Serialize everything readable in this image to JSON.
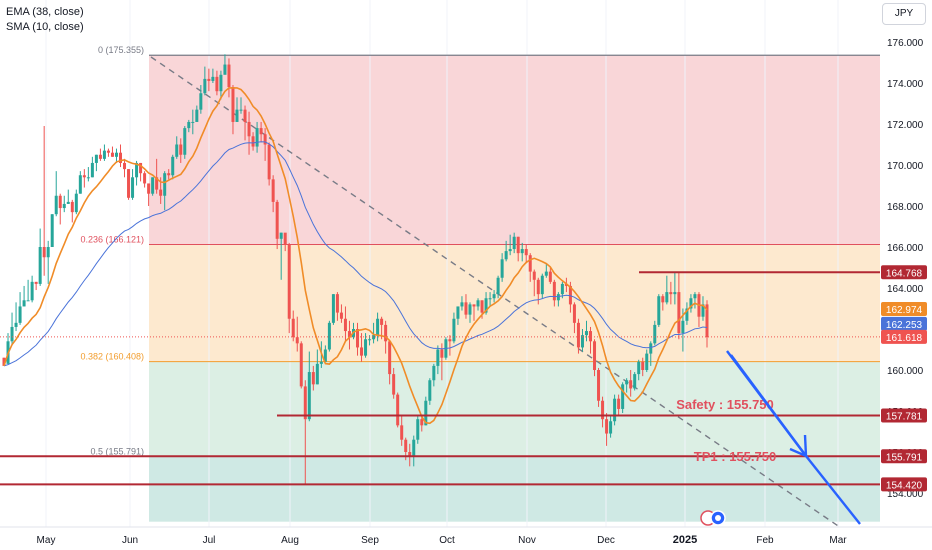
{
  "legend": {
    "ema": "EMA (38, close)",
    "sma": "SMA (10, close)"
  },
  "currency": "JPY",
  "colors": {
    "up": "#26a69a",
    "down": "#ef5350",
    "ema": "#4a73d9",
    "sma": "#f08c28",
    "level": "#b22833",
    "projection": "#2962ff",
    "zone_red": "#f9d6d8",
    "zone_orange": "#fde9cf",
    "zone_green": "#dcefe4",
    "zone_teal": "#cfe9e4"
  },
  "chart_data": {
    "type": "candlestick",
    "title": "",
    "ylim": [
      152.6,
      176.5
    ],
    "y_ticks": [
      "176.000",
      "174.000",
      "172.000",
      "170.000",
      "168.000",
      "166.000",
      "164.000",
      "162.000",
      "160.000",
      "158.000",
      "156.000",
      "154.000"
    ],
    "x_ticks": [
      "May",
      "Jun",
      "Jul",
      "Aug",
      "Sep",
      "Oct",
      "Nov",
      "Dec",
      "2025",
      "Feb",
      "Mar"
    ],
    "fib_levels": [
      {
        "label": "0 (175.355)",
        "value": 175.355
      },
      {
        "label": "0.236 (166.121)",
        "value": 166.121
      },
      {
        "label": "0.382 (160.408)",
        "value": 160.408
      },
      {
        "label": "0.5 (155.791)",
        "value": 155.791
      }
    ],
    "price_tags": [
      {
        "value": 164.768,
        "label": "164.768",
        "kind": "level"
      },
      {
        "value": 162.974,
        "label": "162.974",
        "kind": "sma"
      },
      {
        "value": 162.253,
        "label": "162.253",
        "kind": "ema"
      },
      {
        "value": 161.618,
        "label": "161.618",
        "kind": "last"
      },
      {
        "value": 157.781,
        "label": "157.781",
        "kind": "level"
      },
      {
        "value": 155.791,
        "label": "155.791",
        "kind": "level"
      },
      {
        "value": 154.42,
        "label": "154.420",
        "kind": "level"
      }
    ],
    "annotations": [
      {
        "text": "Safety : 155.750",
        "value": 158.3
      },
      {
        "text": "TP1 : 155.750",
        "value": 155.75
      }
    ],
    "ohlc": [
      [
        160.6,
        160.2,
        160.6,
        160.3
      ],
      [
        160.3,
        161.4,
        161.8,
        160.3
      ],
      [
        161.4,
        162.1,
        162.8,
        161.2
      ],
      [
        162.1,
        162.3,
        163.3,
        161.9
      ],
      [
        162.3,
        163.1,
        163.8,
        162.2
      ],
      [
        163.1,
        163.4,
        164.1,
        163.1
      ],
      [
        163.4,
        163.4,
        164.4,
        163.4
      ],
      [
        163.4,
        164.3,
        164.6,
        163.3
      ],
      [
        164.3,
        164.2,
        164.3,
        163.9
      ],
      [
        164.2,
        166.0,
        166.9,
        164.1
      ],
      [
        166.0,
        165.5,
        171.9,
        164.6
      ],
      [
        165.5,
        166.0,
        166.3,
        164.2
      ],
      [
        166.0,
        167.6,
        167.6,
        166.0
      ],
      [
        167.6,
        168.5,
        169.7,
        167.5
      ],
      [
        168.5,
        167.9,
        168.6,
        167.1
      ],
      [
        167.9,
        168.1,
        168.5,
        167.7
      ],
      [
        168.1,
        168.2,
        168.8,
        168.1
      ],
      [
        168.2,
        167.7,
        168.3,
        167.2
      ],
      [
        167.7,
        168.6,
        168.8,
        167.6
      ],
      [
        168.6,
        169.5,
        169.7,
        168.6
      ],
      [
        169.5,
        169.4,
        169.8,
        168.9
      ],
      [
        169.4,
        169.4,
        169.9,
        169.2
      ],
      [
        169.4,
        170.1,
        170.4,
        169.4
      ],
      [
        170.1,
        170.5,
        170.5,
        169.7
      ],
      [
        170.5,
        170.3,
        170.8,
        170.2
      ],
      [
        170.3,
        170.7,
        171.0,
        170.2
      ],
      [
        170.7,
        170.6,
        170.8,
        170.4
      ],
      [
        170.6,
        170.4,
        170.9,
        170.4
      ],
      [
        170.4,
        170.6,
        170.8,
        170.1
      ],
      [
        170.6,
        170.1,
        171.0,
        169.9
      ],
      [
        170.1,
        169.8,
        170.3,
        169.4
      ],
      [
        169.8,
        168.4,
        169.8,
        168.3
      ],
      [
        168.4,
        169.4,
        169.8,
        168.3
      ],
      [
        169.4,
        170.1,
        170.2,
        169.0
      ],
      [
        170.1,
        169.6,
        170.1,
        169.2
      ],
      [
        169.6,
        169.1,
        169.7,
        168.9
      ],
      [
        169.1,
        168.6,
        169.1,
        168.0
      ],
      [
        168.6,
        169.4,
        169.4,
        168.5
      ],
      [
        169.4,
        168.8,
        170.3,
        168.6
      ],
      [
        168.8,
        168.5,
        169.4,
        168.1
      ],
      [
        168.5,
        169.6,
        169.7,
        167.8
      ],
      [
        169.6,
        169.5,
        169.8,
        169.3
      ],
      [
        169.5,
        170.4,
        170.5,
        169.3
      ],
      [
        170.4,
        171.0,
        171.4,
        170.3
      ],
      [
        171.0,
        170.5,
        171.3,
        170.1
      ],
      [
        170.5,
        171.8,
        171.9,
        170.3
      ],
      [
        171.8,
        172.1,
        172.2,
        171.6
      ],
      [
        172.1,
        172.1,
        172.7,
        171.5
      ],
      [
        172.1,
        172.7,
        172.9,
        172.1
      ],
      [
        172.7,
        173.5,
        173.9,
        172.5
      ],
      [
        173.5,
        174.2,
        174.8,
        173.4
      ],
      [
        174.2,
        174.1,
        174.7,
        173.6
      ],
      [
        174.1,
        174.3,
        174.7,
        174.0
      ],
      [
        174.3,
        173.6,
        174.6,
        173.4
      ],
      [
        173.6,
        174.4,
        174.6,
        173.2
      ],
      [
        174.4,
        174.9,
        175.4,
        174.5
      ],
      [
        174.9,
        173.8,
        175.2,
        173.3
      ],
      [
        173.8,
        172.1,
        173.9,
        171.5
      ],
      [
        172.1,
        172.7,
        173.3,
        172.1
      ],
      [
        172.7,
        172.7,
        173.3,
        172.5
      ],
      [
        172.7,
        172.1,
        172.9,
        171.2
      ],
      [
        172.1,
        171.4,
        172.6,
        170.5
      ],
      [
        171.4,
        170.9,
        171.6,
        170.7
      ],
      [
        170.9,
        171.8,
        172.1,
        170.6
      ],
      [
        171.8,
        171.5,
        172.1,
        171.1
      ],
      [
        171.5,
        171.0,
        171.8,
        170.2
      ],
      [
        171.0,
        169.3,
        171.1,
        169.0
      ],
      [
        169.3,
        168.2,
        169.5,
        167.7
      ],
      [
        168.2,
        166.4,
        168.3,
        165.9
      ],
      [
        166.4,
        166.7,
        166.7,
        164.4
      ],
      [
        166.7,
        166.1,
        166.6,
        165.8
      ],
      [
        166.1,
        162.5,
        166.2,
        161.8
      ],
      [
        162.5,
        161.6,
        162.9,
        161.4
      ],
      [
        161.6,
        161.3,
        162.6,
        160.9
      ],
      [
        161.3,
        159.2,
        161.4,
        159.1
      ],
      [
        159.2,
        157.6,
        159.5,
        154.4
      ],
      [
        157.6,
        159.9,
        160.9,
        157.5
      ],
      [
        159.9,
        159.3,
        160.2,
        159.0
      ],
      [
        159.3,
        160.3,
        161.0,
        159.3
      ],
      [
        160.3,
        160.4,
        161.4,
        160.1
      ],
      [
        160.4,
        161.0,
        161.2,
        160.4
      ],
      [
        161.0,
        162.3,
        162.4,
        160.9
      ],
      [
        162.3,
        163.7,
        163.7,
        162.2
      ],
      [
        163.7,
        162.8,
        163.8,
        162.4
      ],
      [
        162.8,
        162.5,
        163.2,
        162.3
      ],
      [
        162.5,
        161.9,
        163.1,
        161.4
      ],
      [
        161.9,
        161.6,
        162.4,
        161.0
      ],
      [
        161.6,
        162.0,
        162.3,
        161.5
      ],
      [
        162.0,
        161.1,
        162.3,
        160.7
      ],
      [
        161.1,
        160.7,
        161.8,
        160.4
      ],
      [
        160.7,
        161.5,
        161.8,
        160.6
      ],
      [
        161.5,
        161.5,
        161.7,
        161.2
      ],
      [
        161.5,
        161.7,
        162.3,
        161.3
      ],
      [
        161.7,
        162.5,
        162.8,
        161.4
      ],
      [
        162.5,
        162.2,
        162.6,
        161.5
      ],
      [
        162.2,
        161.4,
        162.4,
        160.8
      ],
      [
        161.4,
        159.8,
        161.4,
        159.3
      ],
      [
        159.8,
        158.8,
        160.1,
        158.6
      ],
      [
        158.8,
        157.3,
        158.9,
        157.2
      ],
      [
        157.3,
        156.6,
        157.8,
        156.3
      ],
      [
        156.6,
        156.0,
        156.7,
        155.6
      ],
      [
        156.0,
        155.8,
        156.4,
        155.3
      ],
      [
        155.8,
        156.6,
        156.8,
        155.3
      ],
      [
        156.6,
        157.6,
        157.8,
        156.4
      ],
      [
        157.6,
        157.3,
        157.8,
        157.0
      ],
      [
        157.3,
        158.5,
        158.7,
        157.3
      ],
      [
        158.5,
        159.5,
        159.6,
        158.3
      ],
      [
        159.5,
        160.2,
        160.3,
        159.2
      ],
      [
        160.2,
        161.0,
        161.2,
        159.8
      ],
      [
        161.0,
        160.6,
        161.3,
        159.5
      ],
      [
        160.6,
        161.5,
        161.6,
        160.5
      ],
      [
        161.5,
        161.4,
        161.7,
        160.7
      ],
      [
        161.4,
        162.5,
        162.8,
        161.3
      ],
      [
        162.5,
        163.1,
        163.1,
        162.2
      ],
      [
        163.1,
        163.3,
        163.6,
        162.9
      ],
      [
        163.3,
        162.7,
        163.7,
        162.5
      ],
      [
        162.7,
        163.2,
        163.3,
        162.3
      ],
      [
        163.2,
        163.1,
        163.2,
        162.4
      ],
      [
        163.1,
        163.4,
        163.5,
        162.9
      ],
      [
        163.4,
        162.8,
        163.4,
        162.5
      ],
      [
        162.8,
        163.5,
        163.8,
        162.7
      ],
      [
        163.5,
        163.5,
        163.8,
        163.1
      ],
      [
        163.5,
        163.7,
        163.9,
        163.3
      ],
      [
        163.7,
        164.5,
        164.6,
        163.5
      ],
      [
        164.5,
        165.4,
        165.7,
        164.3
      ],
      [
        165.4,
        165.8,
        166.3,
        165.3
      ],
      [
        165.8,
        165.9,
        166.6,
        165.6
      ],
      [
        165.9,
        166.5,
        166.7,
        165.7
      ],
      [
        166.5,
        165.7,
        166.5,
        165.3
      ],
      [
        165.7,
        165.9,
        166.2,
        165.3
      ],
      [
        165.9,
        165.6,
        166.1,
        165.2
      ],
      [
        165.6,
        164.8,
        165.7,
        164.3
      ],
      [
        164.8,
        164.4,
        164.9,
        163.6
      ],
      [
        164.4,
        163.7,
        164.5,
        163.2
      ],
      [
        163.7,
        164.6,
        164.7,
        163.5
      ],
      [
        164.6,
        164.8,
        165.2,
        164.5
      ],
      [
        164.8,
        164.3,
        165.0,
        164.2
      ],
      [
        164.3,
        163.4,
        164.4,
        163.1
      ],
      [
        163.4,
        163.7,
        163.8,
        163.1
      ],
      [
        163.7,
        164.2,
        164.3,
        163.5
      ],
      [
        164.2,
        164.1,
        164.5,
        163.8
      ],
      [
        164.1,
        163.2,
        164.3,
        162.8
      ],
      [
        163.2,
        162.3,
        163.3,
        161.8
      ],
      [
        162.3,
        161.1,
        162.5,
        160.8
      ],
      [
        161.1,
        161.7,
        162.0,
        160.9
      ],
      [
        161.7,
        161.9,
        162.4,
        161.4
      ],
      [
        161.9,
        161.4,
        162.1,
        160.8
      ],
      [
        161.4,
        160.0,
        161.5,
        159.7
      ],
      [
        160.0,
        158.5,
        160.1,
        158.2
      ],
      [
        158.5,
        157.6,
        158.7,
        157.2
      ],
      [
        157.6,
        156.9,
        157.9,
        156.3
      ],
      [
        156.9,
        157.5,
        157.8,
        156.7
      ],
      [
        157.5,
        158.6,
        158.8,
        157.3
      ],
      [
        158.6,
        158.1,
        158.8,
        157.8
      ],
      [
        158.1,
        159.3,
        159.4,
        157.9
      ],
      [
        159.3,
        159.5,
        159.6,
        158.9
      ],
      [
        159.5,
        159.1,
        160.0,
        158.7
      ],
      [
        159.1,
        159.8,
        159.9,
        159.0
      ],
      [
        159.8,
        160.4,
        160.5,
        159.5
      ],
      [
        160.4,
        160.0,
        160.6,
        159.7
      ],
      [
        160.0,
        160.8,
        161.0,
        159.9
      ],
      [
        160.8,
        161.3,
        161.4,
        160.2
      ],
      [
        161.3,
        162.2,
        162.4,
        161.2
      ],
      [
        162.2,
        163.6,
        163.7,
        162.1
      ],
      [
        163.6,
        163.3,
        163.7,
        162.9
      ],
      [
        163.3,
        163.8,
        164.6,
        163.2
      ],
      [
        163.8,
        163.7,
        164.3,
        163.2
      ],
      [
        163.7,
        163.8,
        164.8,
        163.2
      ],
      [
        163.8,
        161.8,
        164.8,
        161.5
      ],
      [
        161.8,
        162.4,
        163.0,
        160.9
      ],
      [
        162.4,
        163.0,
        163.3,
        162.2
      ],
      [
        163.0,
        163.5,
        163.7,
        162.8
      ],
      [
        163.5,
        163.7,
        163.8,
        163.0
      ],
      [
        163.7,
        162.6,
        163.8,
        162.1
      ],
      [
        162.6,
        163.2,
        163.6,
        162.4
      ],
      [
        163.2,
        161.6,
        163.4,
        161.1
      ]
    ]
  }
}
